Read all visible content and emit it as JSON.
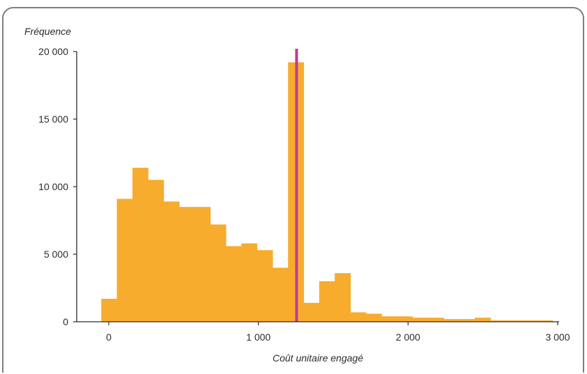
{
  "chart_data": {
    "type": "bar",
    "ylabel": "Fréquence",
    "xlabel": "Coût unitaire engagé",
    "xlim": [
      -50,
      3000
    ],
    "ylim": [
      0,
      20000
    ],
    "x_ticks": [
      0,
      1000,
      2000,
      3000
    ],
    "x_tick_labels": [
      "0",
      "1 000",
      "2 000",
      "3 000"
    ],
    "y_ticks": [
      0,
      5000,
      10000,
      15000,
      20000
    ],
    "y_tick_labels": [
      "0",
      "5 000",
      "10 000",
      "15 000",
      "20 000"
    ],
    "bin_width": 104,
    "bins": [
      {
        "start": -50,
        "value": 1700
      },
      {
        "start": 54,
        "value": 9100
      },
      {
        "start": 158,
        "value": 11400
      },
      {
        "start": 262,
        "value": 10500
      },
      {
        "start": 366,
        "value": 8900
      },
      {
        "start": 470,
        "value": 8500
      },
      {
        "start": 574,
        "value": 8500
      },
      {
        "start": 678,
        "value": 7200
      },
      {
        "start": 782,
        "value": 5600
      },
      {
        "start": 886,
        "value": 5800
      },
      {
        "start": 990,
        "value": 5300
      },
      {
        "start": 1094,
        "value": 4000
      },
      {
        "start": 1198,
        "value": 19200
      },
      {
        "start": 1302,
        "value": 1400
      },
      {
        "start": 1406,
        "value": 3000
      },
      {
        "start": 1510,
        "value": 3600
      },
      {
        "start": 1614,
        "value": 700
      },
      {
        "start": 1718,
        "value": 600
      },
      {
        "start": 1822,
        "value": 400
      },
      {
        "start": 1926,
        "value": 400
      },
      {
        "start": 2030,
        "value": 300
      },
      {
        "start": 2134,
        "value": 300
      },
      {
        "start": 2238,
        "value": 200
      },
      {
        "start": 2342,
        "value": 200
      },
      {
        "start": 2446,
        "value": 300
      },
      {
        "start": 2550,
        "value": 100
      },
      {
        "start": 2654,
        "value": 100
      },
      {
        "start": 2758,
        "value": 100
      },
      {
        "start": 2862,
        "value": 100
      }
    ],
    "reference_line": {
      "x": 1255
    },
    "colors": {
      "bars": "#f7ac2e",
      "reference_line": "#c13a8e",
      "axis": "#2b2b2b",
      "frame": "#7d7d86"
    }
  }
}
